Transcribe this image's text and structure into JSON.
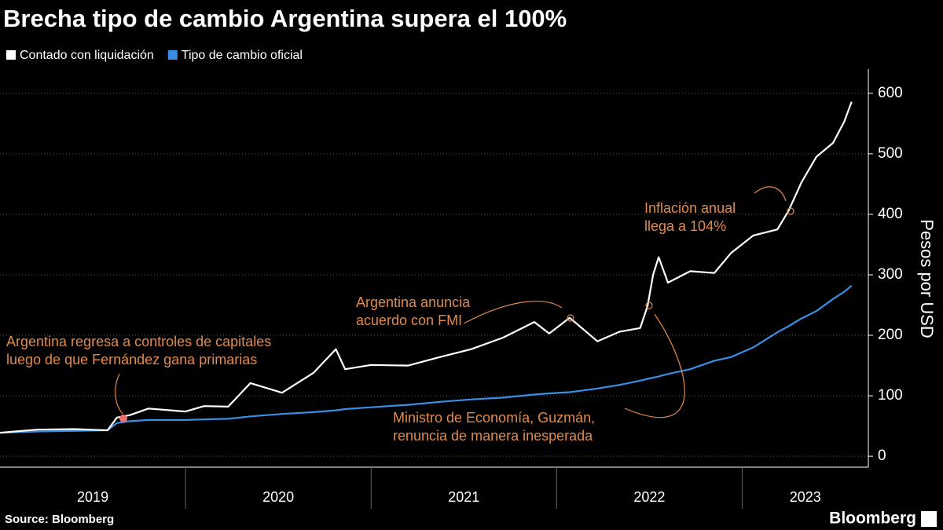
{
  "chart_data": {
    "type": "line",
    "title": "Brecha tipo de cambio Argentina supera el 100%",
    "y_label": "Pesos por USD",
    "source": "Source: Bloomberg",
    "logo": "Bloomberg",
    "x": [
      2019.0,
      2019.2,
      2019.4,
      2019.58,
      2019.63,
      2019.7,
      2019.8,
      2020.0,
      2020.1,
      2020.23,
      2020.35,
      2020.52,
      2020.69,
      2020.81,
      2020.86,
      2021.0,
      2021.2,
      2021.37,
      2021.54,
      2021.71,
      2021.88,
      2021.96,
      2022.07,
      2022.22,
      2022.34,
      2022.45,
      2022.49,
      2022.52,
      2022.55,
      2022.6,
      2022.72,
      2022.85,
      2022.94,
      2023.06,
      2023.19,
      2023.25,
      2023.32,
      2023.4,
      2023.49,
      2023.55,
      2023.59
    ],
    "series": [
      {
        "name": "Contado con liquidación",
        "color": "#ffffff",
        "values": [
          39,
          44,
          45,
          43,
          64,
          68,
          79,
          74,
          83,
          82,
          121,
          105,
          138,
          177,
          144,
          151,
          150,
          164,
          177,
          196,
          222,
          203,
          229,
          190,
          206,
          212,
          248,
          300,
          329,
          287,
          306,
          303,
          336,
          365,
          375,
          406,
          453,
          495,
          518,
          553,
          586
        ]
      },
      {
        "name": "Tipo de cambio oficial",
        "color": "#3a8ee6",
        "values": [
          39,
          41,
          42,
          43,
          55,
          58,
          60,
          60,
          61,
          62,
          66,
          70,
          73,
          76,
          78,
          81,
          85,
          90,
          94,
          97,
          102,
          104,
          106,
          112,
          118,
          125,
          128,
          130,
          132,
          136,
          144,
          158,
          164,
          180,
          205,
          215,
          228,
          240,
          260,
          272,
          282
        ]
      }
    ],
    "xlim": [
      2019,
      2023.68
    ],
    "xticks": [
      {
        "value": 2019.5,
        "label": "2019"
      },
      {
        "value": 2020.5,
        "label": "2020"
      },
      {
        "value": 2021.5,
        "label": "2021"
      },
      {
        "value": 2022.5,
        "label": "2022"
      },
      {
        "value": 2023.34,
        "label": "2023"
      }
    ],
    "ylim": [
      -18,
      640
    ],
    "yticks": [
      0,
      100,
      200,
      300,
      400,
      500,
      600
    ],
    "grid": true,
    "annotations": [
      {
        "lines": [
          "Argentina regresa a controles de capitales",
          "luego de que Fernández gana primarias"
        ]
      },
      {
        "lines": [
          "Argentina anuncia",
          "acuerdo con FMI"
        ]
      },
      {
        "lines": [
          "Ministro de Economía, Guzmán,",
          "renuncia de manera inesperada"
        ]
      },
      {
        "lines": [
          "Inflación anual",
          "llega a 104%"
        ]
      }
    ]
  }
}
